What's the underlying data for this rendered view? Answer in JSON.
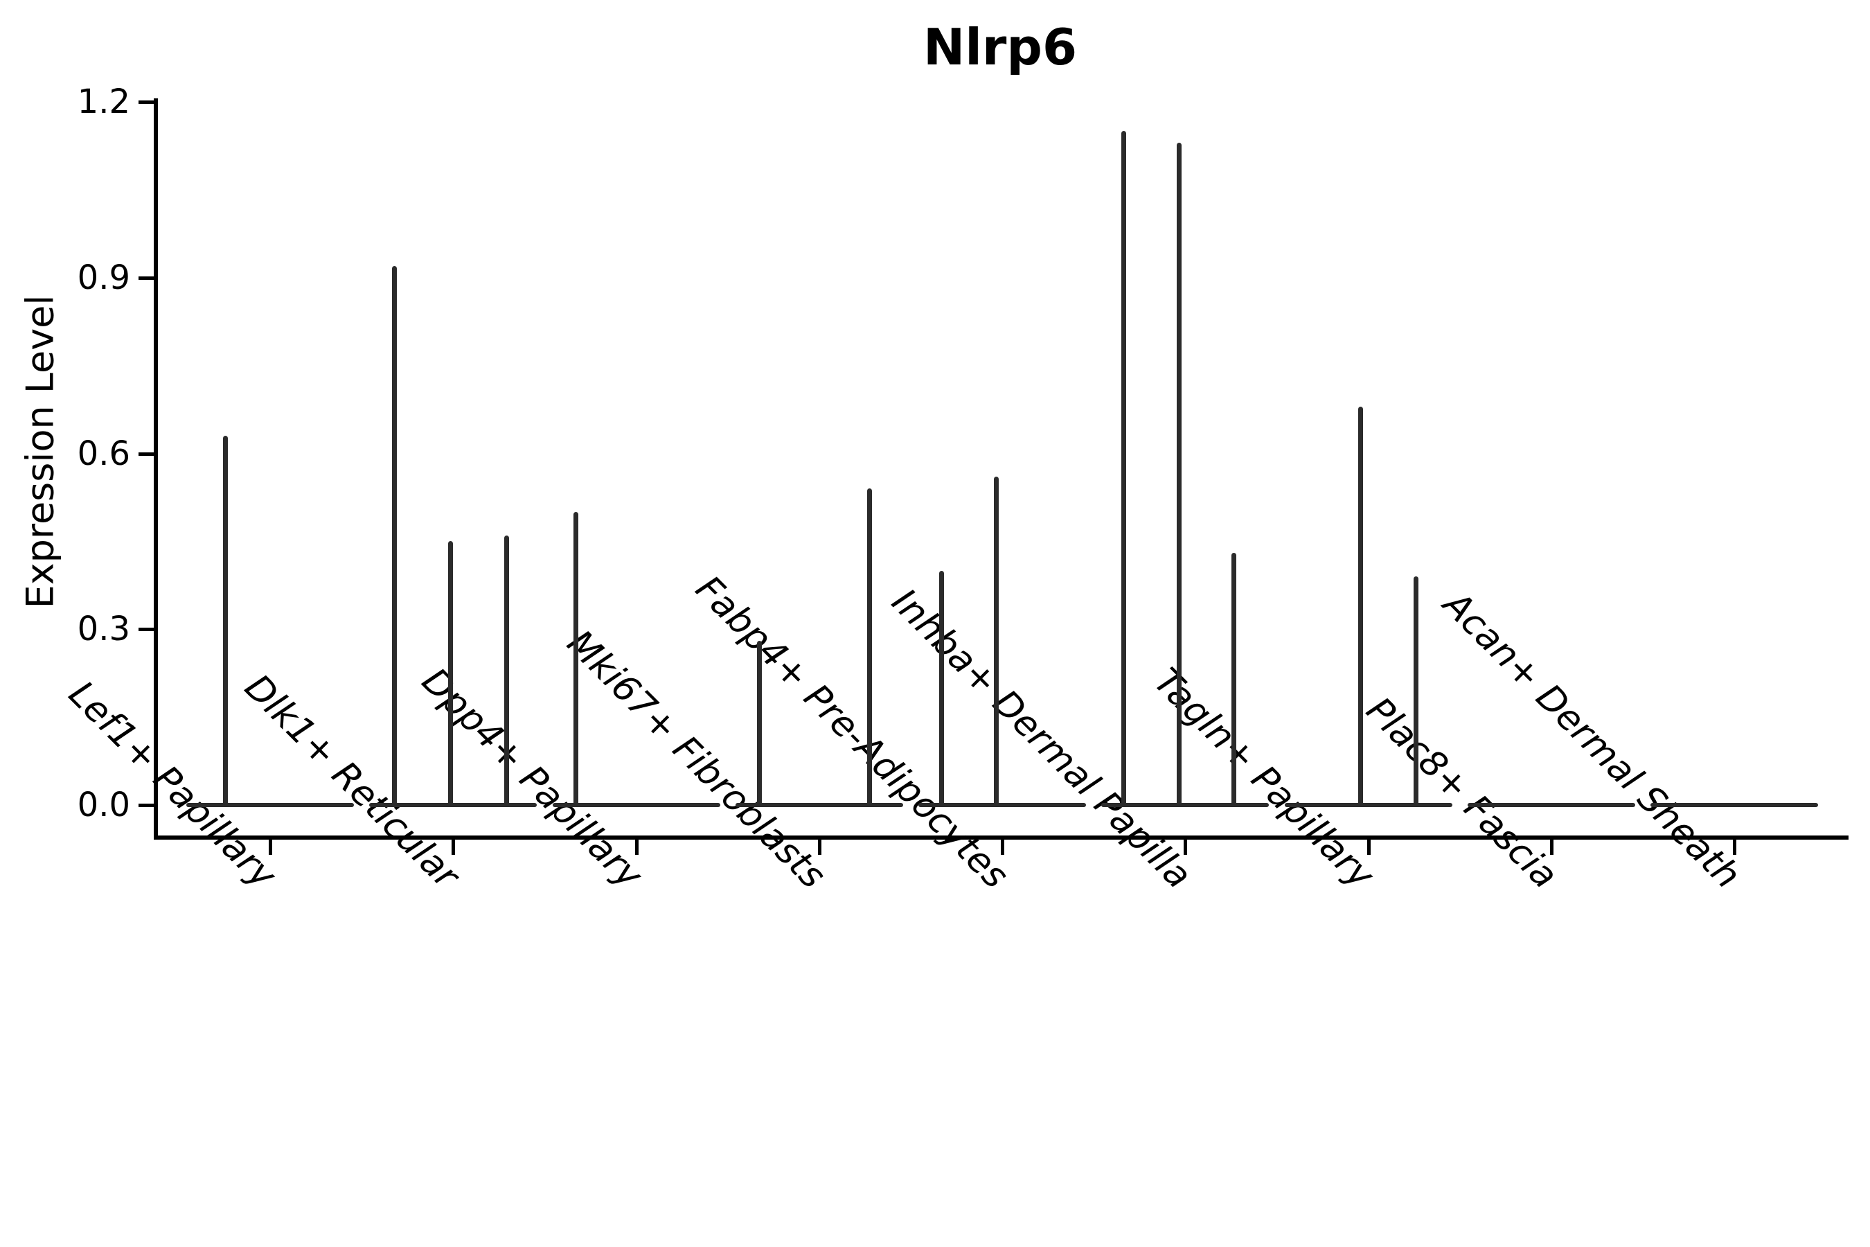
{
  "chart_data": {
    "type": "violin",
    "title": "Nlrp6",
    "ylabel": "Expression Level",
    "xlabel": "",
    "ylim": [
      0.0,
      1.2
    ],
    "yticks": [
      "0.0",
      "0.3",
      "0.6",
      "0.9",
      "1.2"
    ],
    "ytick_values": [
      0.0,
      0.3,
      0.6,
      0.9,
      1.2
    ],
    "grid": "off",
    "legend": "none",
    "categories": [
      "Lef1+ Papillary",
      "Dlk1+ Reticular",
      "Dpp4+ Papillary",
      "Mki67+ Fibroblasts",
      "Fabp4+ Pre-Adipocytes",
      "Inhba+ Dermal Papilla",
      "Tagln+ Papillary",
      "Plac8+ Fascia",
      "Acan+ Dermal Sheath"
    ],
    "violins": [
      {
        "category": "Lef1+ Papillary",
        "spikes": [
          {
            "slot": -65,
            "max": 0.63
          }
        ]
      },
      {
        "category": "Dlk1+ Reticular",
        "spikes": [
          {
            "slot": -85,
            "max": 0.92
          },
          {
            "slot": -4,
            "max": 0.45
          },
          {
            "slot": 77,
            "max": 0.46
          }
        ]
      },
      {
        "category": "Dpp4+ Papillary",
        "spikes": [
          {
            "slot": -87,
            "max": 0.5
          }
        ]
      },
      {
        "category": "Mki67+ Fibroblasts",
        "spikes": [
          {
            "slot": -86,
            "max": 0.28
          },
          {
            "slot": 73,
            "max": 0.54
          }
        ]
      },
      {
        "category": "Fabp4+ Pre-Adipocytes",
        "spikes": [
          {
            "slot": -88,
            "max": 0.4
          },
          {
            "slot": -9,
            "max": 0.56
          }
        ]
      },
      {
        "category": "Inhba+ Dermal Papilla",
        "spikes": [
          {
            "slot": -89,
            "max": 1.15
          },
          {
            "slot": -9,
            "max": 1.13
          },
          {
            "slot": 70,
            "max": 0.43
          }
        ]
      },
      {
        "category": "Tagln+ Papillary",
        "spikes": [
          {
            "slot": -11,
            "max": 0.68
          },
          {
            "slot": 69,
            "max": 0.39
          }
        ]
      },
      {
        "category": "Plac8+ Fascia",
        "spikes": []
      },
      {
        "category": "Acan+ Dermal Sheath",
        "spikes": []
      }
    ],
    "colors": {
      "ink": "#2b2b2b",
      "axis": "#000000",
      "background": "#ffffff",
      "text": "#000000"
    }
  }
}
